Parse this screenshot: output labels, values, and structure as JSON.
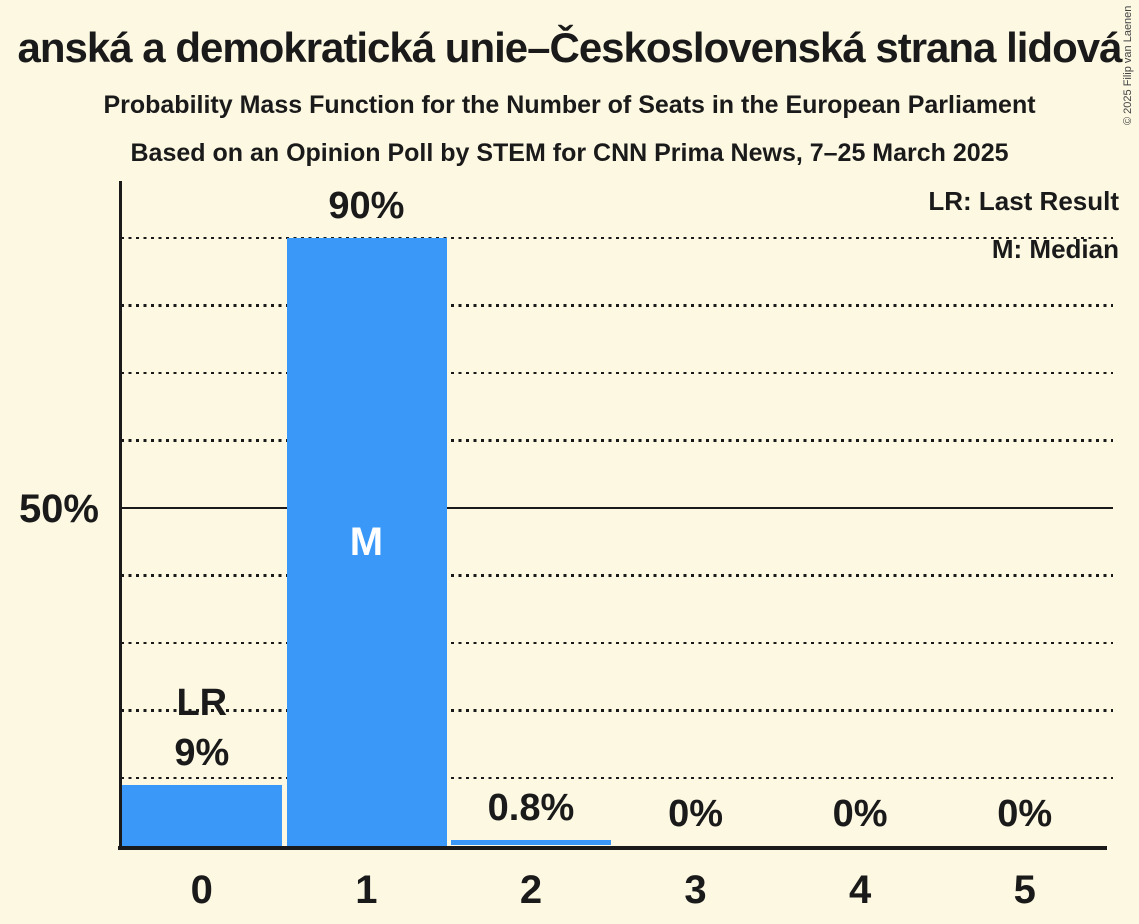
{
  "chart_data": {
    "type": "bar",
    "title": "anská a demokratická unie–Československá strana lidová",
    "subtitle": "Probability Mass Function for the Number of Seats in the European Parliament",
    "poll_details": "Based on an Opinion Poll by STEM for CNN Prima News, 7–25 March 2025",
    "categories": [
      "0",
      "1",
      "2",
      "3",
      "4",
      "5"
    ],
    "values": [
      9,
      90,
      0.8,
      0,
      0,
      0
    ],
    "value_labels": [
      "9%",
      "90%",
      "0.8%",
      "0%",
      "0%",
      "0%"
    ],
    "annotations": [
      {
        "category": "0",
        "label": "LR",
        "placement": "above"
      },
      {
        "category": "1",
        "label": "M",
        "placement": "inside"
      }
    ],
    "legend": [
      {
        "label": "LR: Last Result"
      },
      {
        "label": "M: Median"
      }
    ],
    "y_axis": {
      "tick_label": "50%",
      "tick_value": 50,
      "ylim": [
        0,
        100
      ],
      "gridline_step": 10,
      "solid_line_value": 50,
      "grid": "dotted"
    },
    "xlabel": "",
    "ylabel": "",
    "copyright": "© 2025 Filip van Laenen",
    "colors": {
      "bar": "#3A99F8",
      "background": "#FCF8E2",
      "text": "#1A1A1A",
      "copyright": "#444444",
      "median_letter": "#FFFFFF"
    }
  }
}
